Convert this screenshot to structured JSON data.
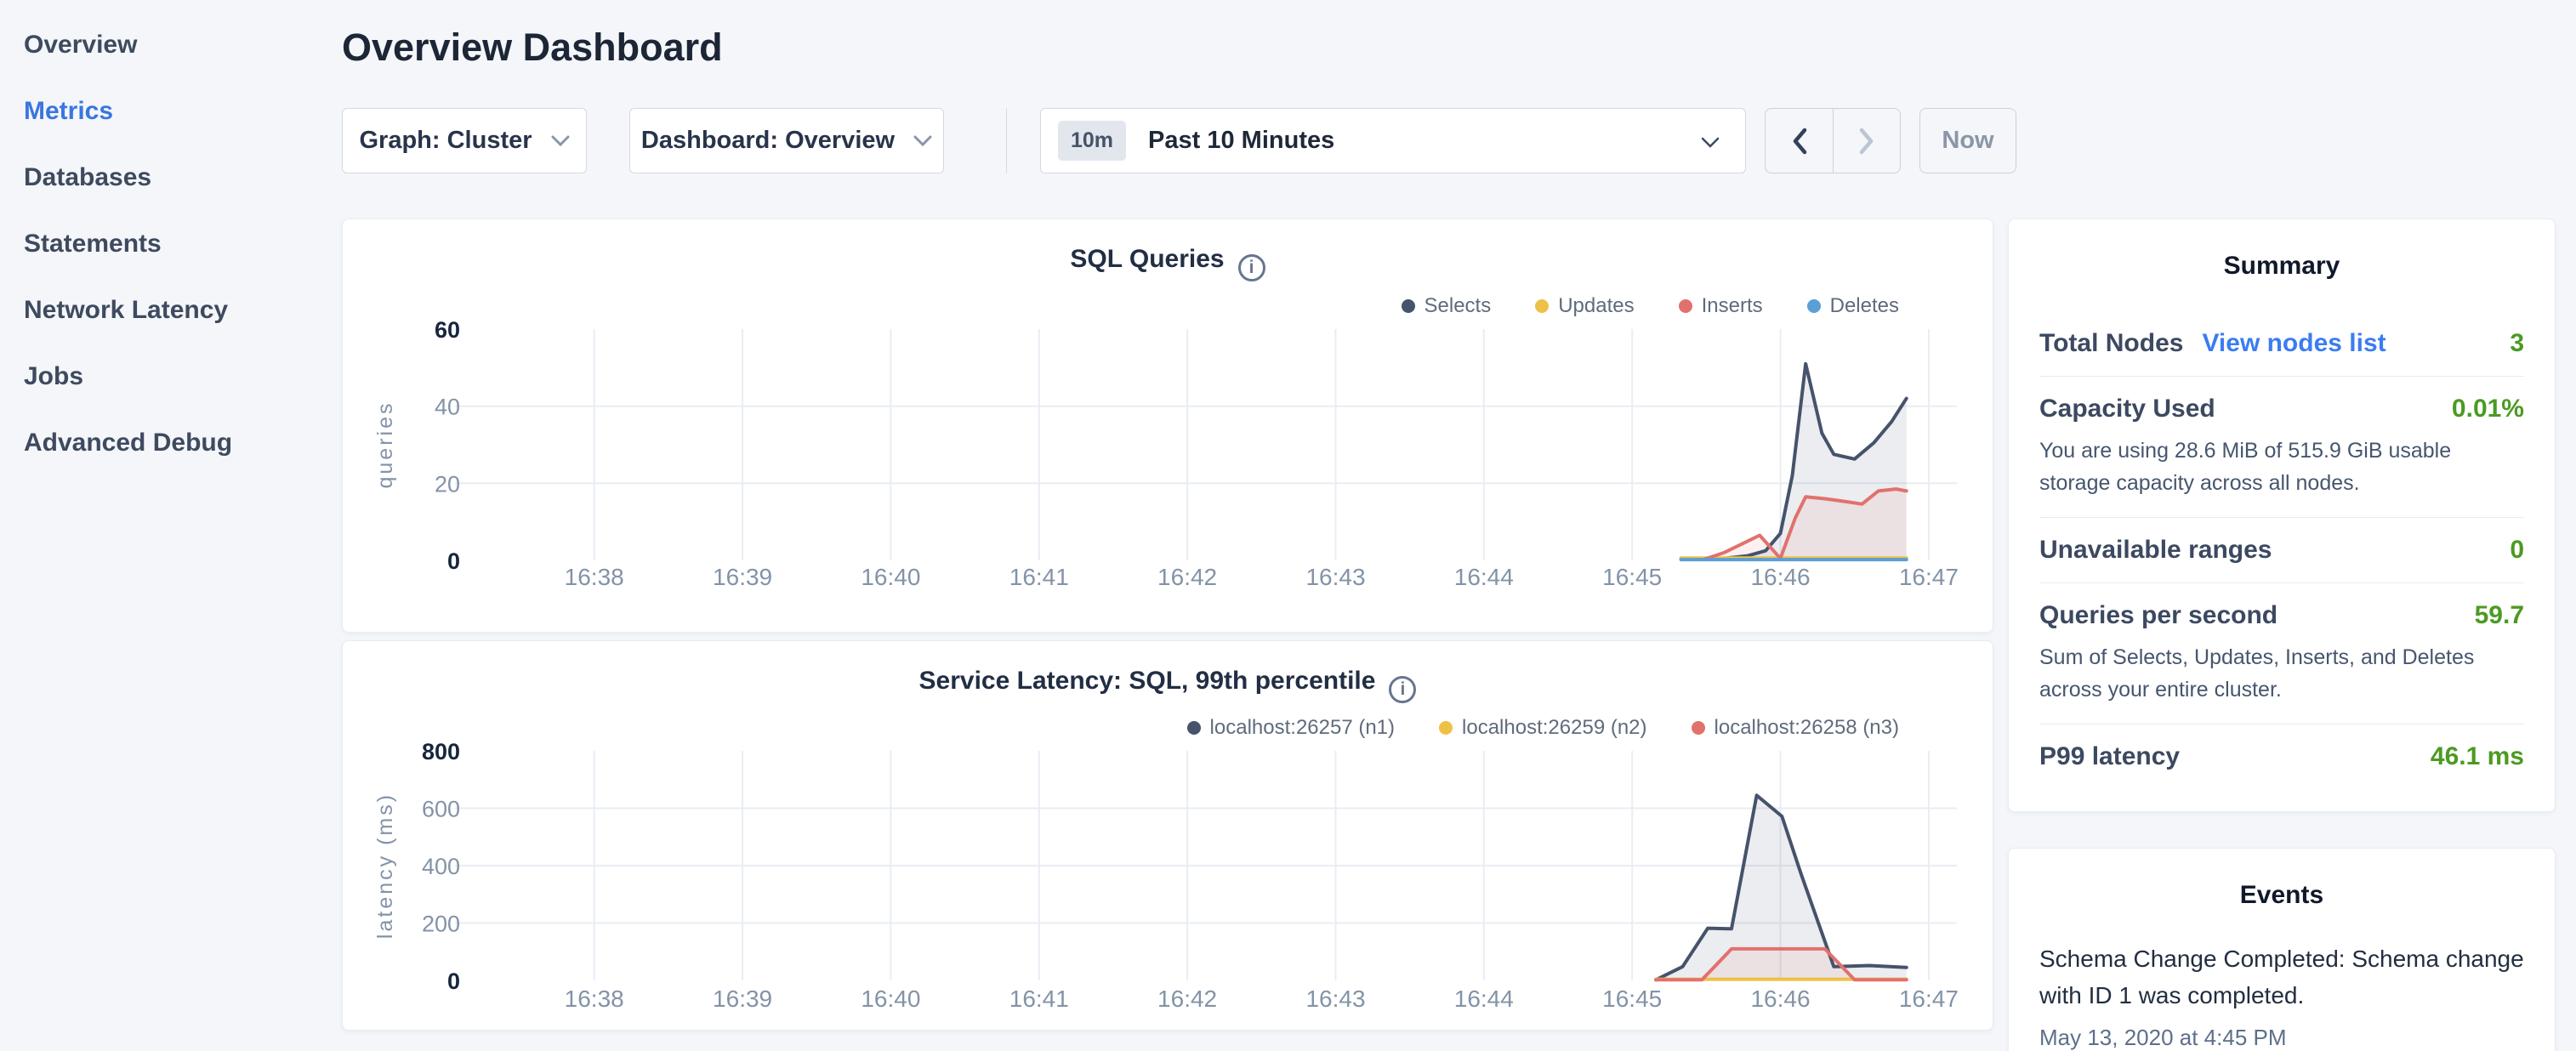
{
  "sidebar": {
    "items": [
      {
        "label": "Overview",
        "active": false
      },
      {
        "label": "Metrics",
        "active": true
      },
      {
        "label": "Databases",
        "active": false
      },
      {
        "label": "Statements",
        "active": false
      },
      {
        "label": "Network Latency",
        "active": false
      },
      {
        "label": "Jobs",
        "active": false
      },
      {
        "label": "Advanced Debug",
        "active": false
      }
    ]
  },
  "header": {
    "title": "Overview Dashboard"
  },
  "toolbar": {
    "graph_dropdown": "Graph: Cluster",
    "dashboard_dropdown": "Dashboard: Overview",
    "range_badge": "10m",
    "range_label": "Past 10 Minutes",
    "now_label": "Now"
  },
  "chart_data": [
    {
      "type": "area",
      "title": "SQL Queries",
      "ylabel": "queries",
      "ymax": 60,
      "yticks": [
        0,
        20,
        40,
        60
      ],
      "xmin": 0.21,
      "xmax": 10.19,
      "baseline_y": 293,
      "legend_position": "top-right",
      "grid": true,
      "xticks": [
        {
          "x": 1,
          "label": "16:38"
        },
        {
          "x": 2,
          "label": "16:39"
        },
        {
          "x": 3,
          "label": "16:40"
        },
        {
          "x": 4,
          "label": "16:41"
        },
        {
          "x": 5,
          "label": "16:42"
        },
        {
          "x": 6,
          "label": "16:43"
        },
        {
          "x": 7,
          "label": "16:44"
        },
        {
          "x": 8,
          "label": "16:45"
        },
        {
          "x": 9,
          "label": "16:46"
        },
        {
          "x": 10,
          "label": "16:47"
        }
      ],
      "series": [
        {
          "name": "Selects",
          "color": "#45536b",
          "fill": "rgba(69,83,107,0.10)",
          "points": [
            [
              8.33,
              0.4
            ],
            [
              8.62,
              0.5
            ],
            [
              8.78,
              1.2
            ],
            [
              8.9,
              2.5
            ],
            [
              9.0,
              7
            ],
            [
              9.08,
              22
            ],
            [
              9.17,
              51
            ],
            [
              9.28,
              33
            ],
            [
              9.36,
              27.5
            ],
            [
              9.5,
              26.3
            ],
            [
              9.63,
              30.5
            ],
            [
              9.75,
              36
            ],
            [
              9.85,
              42
            ]
          ]
        },
        {
          "name": "Updates",
          "color": "#eec146",
          "fill": "none",
          "points": [
            [
              8.33,
              0.6
            ],
            [
              9.85,
              0.6
            ]
          ]
        },
        {
          "name": "Inserts",
          "color": "#e1716d",
          "fill": "rgba(225,113,109,0.10)",
          "points": [
            [
              8.48,
              0.2
            ],
            [
              8.62,
              2
            ],
            [
              8.78,
              5
            ],
            [
              8.86,
              6.5
            ],
            [
              9.0,
              0.5
            ],
            [
              9.1,
              11
            ],
            [
              9.17,
              16.5
            ],
            [
              9.3,
              16
            ],
            [
              9.45,
              15.2
            ],
            [
              9.55,
              14.6
            ],
            [
              9.66,
              18
            ],
            [
              9.78,
              18.5
            ],
            [
              9.85,
              18
            ]
          ]
        },
        {
          "name": "Deletes",
          "color": "#5a9fd6",
          "fill": "none",
          "points": [
            [
              8.33,
              0.2
            ],
            [
              9.85,
              0.2
            ]
          ]
        }
      ]
    },
    {
      "type": "area",
      "title": "Service Latency: SQL, 99th percentile",
      "ylabel": "latency (ms)",
      "ymax": 800,
      "yticks": [
        0,
        200,
        400,
        600,
        800
      ],
      "xmin": 0.21,
      "xmax": 10.19,
      "baseline_y": 291,
      "legend_position": "top-right",
      "grid": true,
      "xticks": [
        {
          "x": 1,
          "label": "16:38"
        },
        {
          "x": 2,
          "label": "16:39"
        },
        {
          "x": 3,
          "label": "16:40"
        },
        {
          "x": 4,
          "label": "16:41"
        },
        {
          "x": 5,
          "label": "16:42"
        },
        {
          "x": 6,
          "label": "16:43"
        },
        {
          "x": 7,
          "label": "16:44"
        },
        {
          "x": 8,
          "label": "16:45"
        },
        {
          "x": 9,
          "label": "16:46"
        },
        {
          "x": 10,
          "label": "16:47"
        }
      ],
      "series": [
        {
          "name": "localhost:26257 (n1)",
          "color": "#45536b",
          "fill": "rgba(69,83,107,0.10)",
          "points": [
            [
              8.16,
              2
            ],
            [
              8.34,
              48
            ],
            [
              8.51,
              182
            ],
            [
              8.67,
              180
            ],
            [
              8.84,
              645
            ],
            [
              9.01,
              572
            ],
            [
              9.14,
              370
            ],
            [
              9.36,
              48
            ],
            [
              9.6,
              52
            ],
            [
              9.85,
              45
            ]
          ]
        },
        {
          "name": "localhost:26259 (n2)",
          "color": "#eec146",
          "fill": "none",
          "points": [
            [
              8.16,
              4
            ],
            [
              9.85,
              4
            ]
          ]
        },
        {
          "name": "localhost:26258 (n3)",
          "color": "#e1716d",
          "fill": "rgba(225,113,109,0.10)",
          "points": [
            [
              8.16,
              2
            ],
            [
              8.47,
              2
            ],
            [
              8.55,
              45
            ],
            [
              8.67,
              110
            ],
            [
              9.3,
              110
            ],
            [
              9.5,
              2
            ],
            [
              9.85,
              2
            ]
          ]
        }
      ]
    }
  ],
  "summary": {
    "title": "Summary",
    "rows": [
      {
        "label": "Total Nodes",
        "link": "View nodes list",
        "value": "3"
      },
      {
        "label": "Capacity Used",
        "value": "0.01%",
        "desc": "You are using 28.6 MiB of 515.9 GiB usable storage capacity across all nodes."
      },
      {
        "label": "Unavailable ranges",
        "value": "0"
      },
      {
        "label": "Queries per second",
        "value": "59.7",
        "desc": "Sum of Selects, Updates, Inserts, and Deletes across your entire cluster."
      },
      {
        "label": "P99 latency",
        "value": "46.1 ms"
      }
    ]
  },
  "events": {
    "title": "Events",
    "items": [
      {
        "message": "Schema Change Completed: Schema change with ID 1 was completed.",
        "timestamp": "May 13, 2020 at 4:45 PM"
      }
    ]
  },
  "colors": {
    "accent_blue": "#3a76e0",
    "link_blue": "#3b7cf0",
    "value_green": "#4c9a22",
    "series_navy": "#45536b",
    "series_yellow": "#eec146",
    "series_red": "#e1716d",
    "series_blue": "#5a9fd6",
    "page_bg": "#f4f6fa"
  }
}
